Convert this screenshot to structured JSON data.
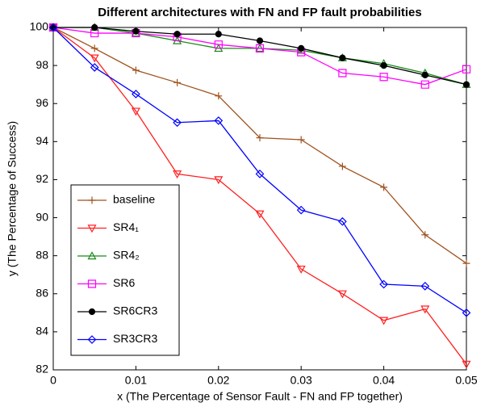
{
  "chart_data": {
    "type": "line",
    "title": "Different architectures with FN and FP fault probabilities",
    "x_label": "x (The Percentage of Sensor Fault - FN and FP together)",
    "y_label": "y (The Percentage of Success)",
    "x": [
      0,
      0.005,
      0.01,
      0.015,
      0.02,
      0.025,
      0.03,
      0.035,
      0.04,
      0.045,
      0.05
    ],
    "xlim": [
      0,
      0.05
    ],
    "xticks": [
      0,
      0.01,
      0.02,
      0.03,
      0.04,
      0.05
    ],
    "ylim": [
      82,
      100
    ],
    "yticks": [
      82,
      84,
      86,
      88,
      90,
      92,
      94,
      96,
      98,
      100
    ],
    "legend": "lower left",
    "series": [
      {
        "name": "baseline",
        "color": "#a0521e",
        "marker": "+",
        "values": [
          100,
          98.9,
          97.75,
          97.1,
          96.4,
          94.2,
          94.1,
          92.7,
          91.6,
          89.1,
          87.6
        ]
      },
      {
        "name": "SR4₁",
        "color": "#ff2020",
        "marker": "v",
        "values": [
          100,
          98.4,
          95.6,
          92.3,
          92.0,
          90.2,
          87.3,
          86.0,
          84.6,
          85.2,
          82.3
        ]
      },
      {
        "name": "SR4₂",
        "color": "#1a8a1a",
        "marker": "^",
        "values": [
          100,
          100,
          99.7,
          99.3,
          98.9,
          98.9,
          98.8,
          98.4,
          98.1,
          97.6,
          97.0
        ]
      },
      {
        "name": "SR6",
        "color": "#ff00ff",
        "marker": "s",
        "values": [
          100,
          99.7,
          99.7,
          99.5,
          99.1,
          98.9,
          98.7,
          97.6,
          97.4,
          97.0,
          97.8
        ]
      },
      {
        "name": "SR6CR3",
        "color": "#000000",
        "marker": "o",
        "values": [
          100,
          100,
          99.8,
          99.65,
          99.65,
          99.3,
          98.9,
          98.4,
          98.0,
          97.5,
          97.0
        ]
      },
      {
        "name": "SR3CR3",
        "color": "#0000ff",
        "marker": "d",
        "values": [
          100,
          97.9,
          96.5,
          95.0,
          95.1,
          92.3,
          90.4,
          89.8,
          86.5,
          86.4,
          85.0
        ]
      }
    ]
  }
}
